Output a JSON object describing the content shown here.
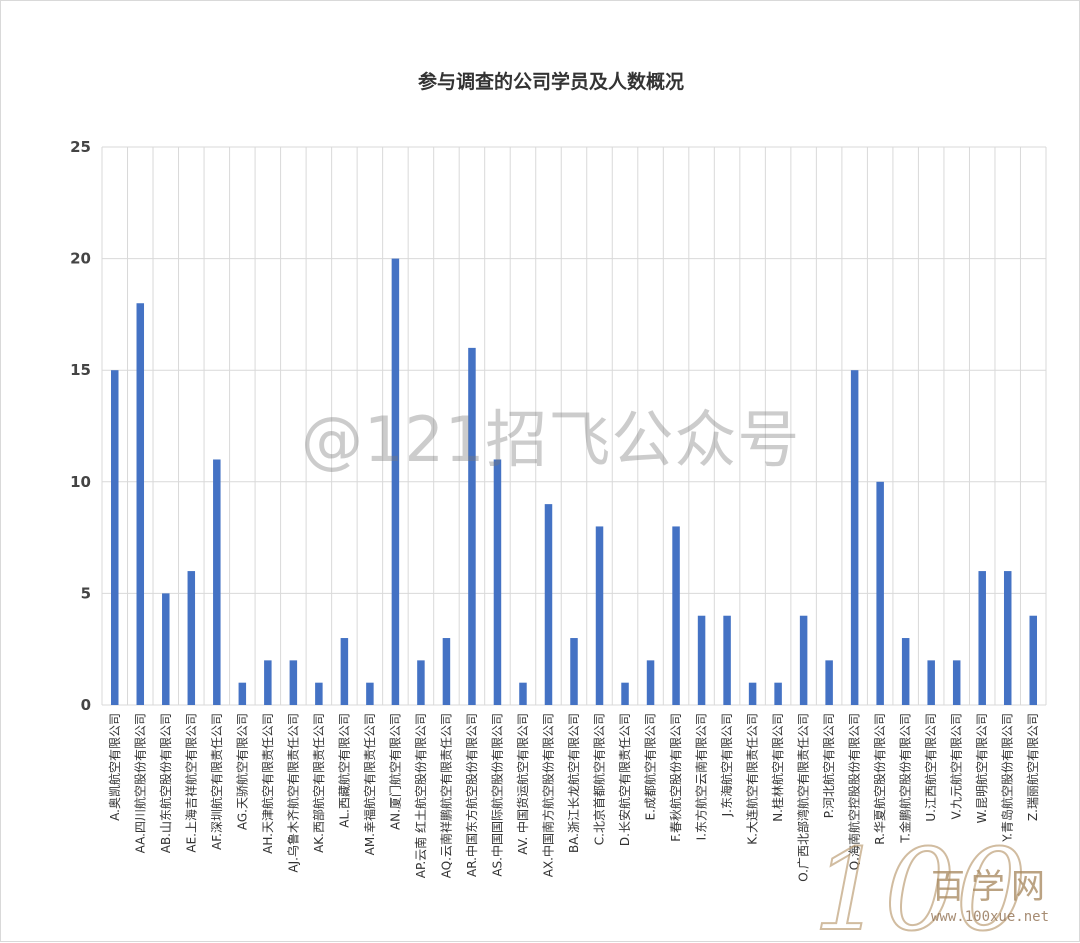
{
  "watermark": "@121招飞公众号",
  "logo": {
    "text": "百学网",
    "url": "www.100xue.net",
    "mark": "100"
  },
  "colors": {
    "bar": "#4472c4",
    "grid": "#d9d9d9"
  },
  "chart_data": {
    "type": "bar",
    "title": "参与调查的公司学员及人数概况",
    "xlabel": "",
    "ylabel": "",
    "ylim": [
      0,
      25
    ],
    "yticks": [
      0,
      5,
      10,
      15,
      20,
      25
    ],
    "grid": true,
    "categories": [
      "A.奥凯航空有限公司",
      "AA.四川航空股份有限公司",
      "AB.山东航空股份有限公司",
      "AE.上海吉祥航空有限公司",
      "AF.深圳航空有限责任公司",
      "AG.天骄航空有限公司",
      "AH.天津航空有限责任公司",
      "AJ.乌鲁木齐航空有限责任公司",
      "AK.西部航空有限责任公司",
      "AL.西藏航空有限公司",
      "AM.幸福航空有限责任公司",
      "AN.厦门航空有限公司",
      "AP.云南 红土航空股份有限公司",
      "AQ.云南祥鹏航空有限责任公司",
      "AR.中国东方航空股份有限公司",
      "AS.中国国际航空股份有限公司",
      "AV. 中国货运航空有限公司",
      "AX.中国南方航空股份有限公司",
      "BA.浙江长龙航空有限公司",
      "C.北京首都航空有限公司",
      "D.长安航空有限责任公司",
      "E.成都航空有限公司",
      "F.春秋航空股份有限公司",
      "I.东方航空云南有限公司",
      "J.东海航空有限公司",
      "K.大连航空有限责任公司",
      "N.桂林航空有限公司",
      "O.广西北部湾航空有限责任公司",
      "P.河北航空有限公司",
      "Q.海南航空控股股份有限公司",
      "R.华夏航空股份有限公司",
      "T.金鹏航空股份有限公司",
      "U.江西航空有限公司",
      "V.九元航空有限公司",
      "W.昆明航空有限公司",
      "Y.青岛航空股份有限公司",
      "Z.瑞丽航空有限公司"
    ],
    "values": [
      15,
      18,
      5,
      6,
      11,
      1,
      2,
      2,
      1,
      3,
      1,
      20,
      2,
      3,
      16,
      11,
      1,
      9,
      3,
      8,
      1,
      2,
      8,
      4,
      4,
      1,
      1,
      4,
      2,
      15,
      10,
      3,
      2,
      2,
      6,
      6,
      4
    ]
  }
}
